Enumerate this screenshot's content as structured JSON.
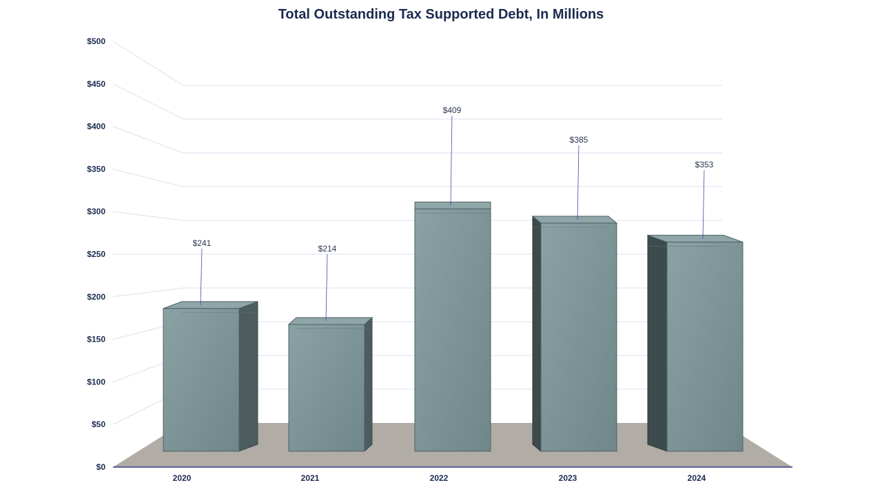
{
  "chart_data": {
    "type": "bar",
    "title": "Total Outstanding Tax Supported Debt, In Millions",
    "categories": [
      "2020",
      "2021",
      "2022",
      "2023",
      "2024"
    ],
    "values": [
      241,
      214,
      409,
      385,
      353
    ],
    "data_labels": [
      "$241",
      "$214",
      "$409",
      "$385",
      "$353"
    ],
    "y_ticks": [
      "$0",
      "$50",
      "$100",
      "$150",
      "$200",
      "$250",
      "$300",
      "$350",
      "$400",
      "$450",
      "$500"
    ],
    "ylim": [
      0,
      500
    ],
    "xlabel": "",
    "ylabel": "",
    "grid": true,
    "legend": "none",
    "style": "3d-column",
    "colors": {
      "bar_front": "#7a9394",
      "bar_side": "#4d5c5e",
      "bar_top": "#8fa6a8",
      "floor": "#b1aca5",
      "grid": "#dcdff0",
      "axis": "#2b3a8c",
      "title": "#1b2a4e"
    }
  }
}
